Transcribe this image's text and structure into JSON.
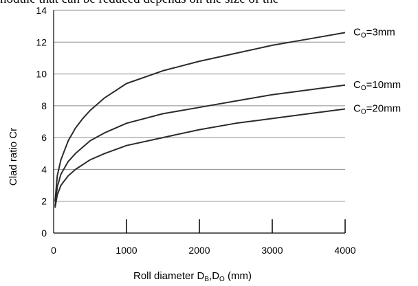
{
  "page_fragment": "nodule that can be reduced depends on the size of the",
  "chart_data": {
    "type": "line",
    "title": "",
    "xlabel": "Roll diameter D",
    "xlabel_sub1": "B",
    "xlabel_mid": ",D",
    "xlabel_sub2": "O",
    "xlabel_unit": " (mm)",
    "ylabel": "Clad ratio Cr",
    "xlim": [
      0,
      4000
    ],
    "ylim": [
      0,
      14
    ],
    "x_ticks": [
      0,
      1000,
      2000,
      3000,
      4000
    ],
    "y_ticks": [
      0,
      2,
      4,
      6,
      8,
      10,
      12,
      14
    ],
    "grid": "horizontal",
    "label_style": "direct labels at line ends",
    "series": [
      {
        "label_prefix": "C",
        "label_sub": "O",
        "label_value": "=3mm",
        "x": [
          20,
          50,
          100,
          200,
          300,
          400,
          500,
          700,
          1000,
          1500,
          2000,
          2500,
          3000,
          3500,
          4000
        ],
        "y": [
          2.0,
          3.6,
          4.6,
          5.8,
          6.6,
          7.2,
          7.7,
          8.5,
          9.4,
          10.2,
          10.8,
          11.3,
          11.8,
          12.2,
          12.6
        ]
      },
      {
        "label_prefix": "C",
        "label_sub": "O",
        "label_value": "=10mm",
        "x": [
          20,
          50,
          100,
          200,
          300,
          400,
          500,
          700,
          1000,
          1500,
          2000,
          2500,
          3000,
          3500,
          4000
        ],
        "y": [
          1.7,
          2.9,
          3.7,
          4.5,
          5.0,
          5.4,
          5.8,
          6.3,
          6.9,
          7.5,
          7.9,
          8.3,
          8.7,
          9.0,
          9.3
        ]
      },
      {
        "label_prefix": "C",
        "label_sub": "O",
        "label_value": "=20mm",
        "x": [
          20,
          50,
          100,
          200,
          300,
          400,
          500,
          700,
          1000,
          1500,
          2000,
          2500,
          3000,
          3500,
          4000
        ],
        "y": [
          1.6,
          2.4,
          3.0,
          3.6,
          4.0,
          4.3,
          4.6,
          5.0,
          5.5,
          6.0,
          6.5,
          6.9,
          7.2,
          7.5,
          7.8
        ]
      }
    ]
  }
}
